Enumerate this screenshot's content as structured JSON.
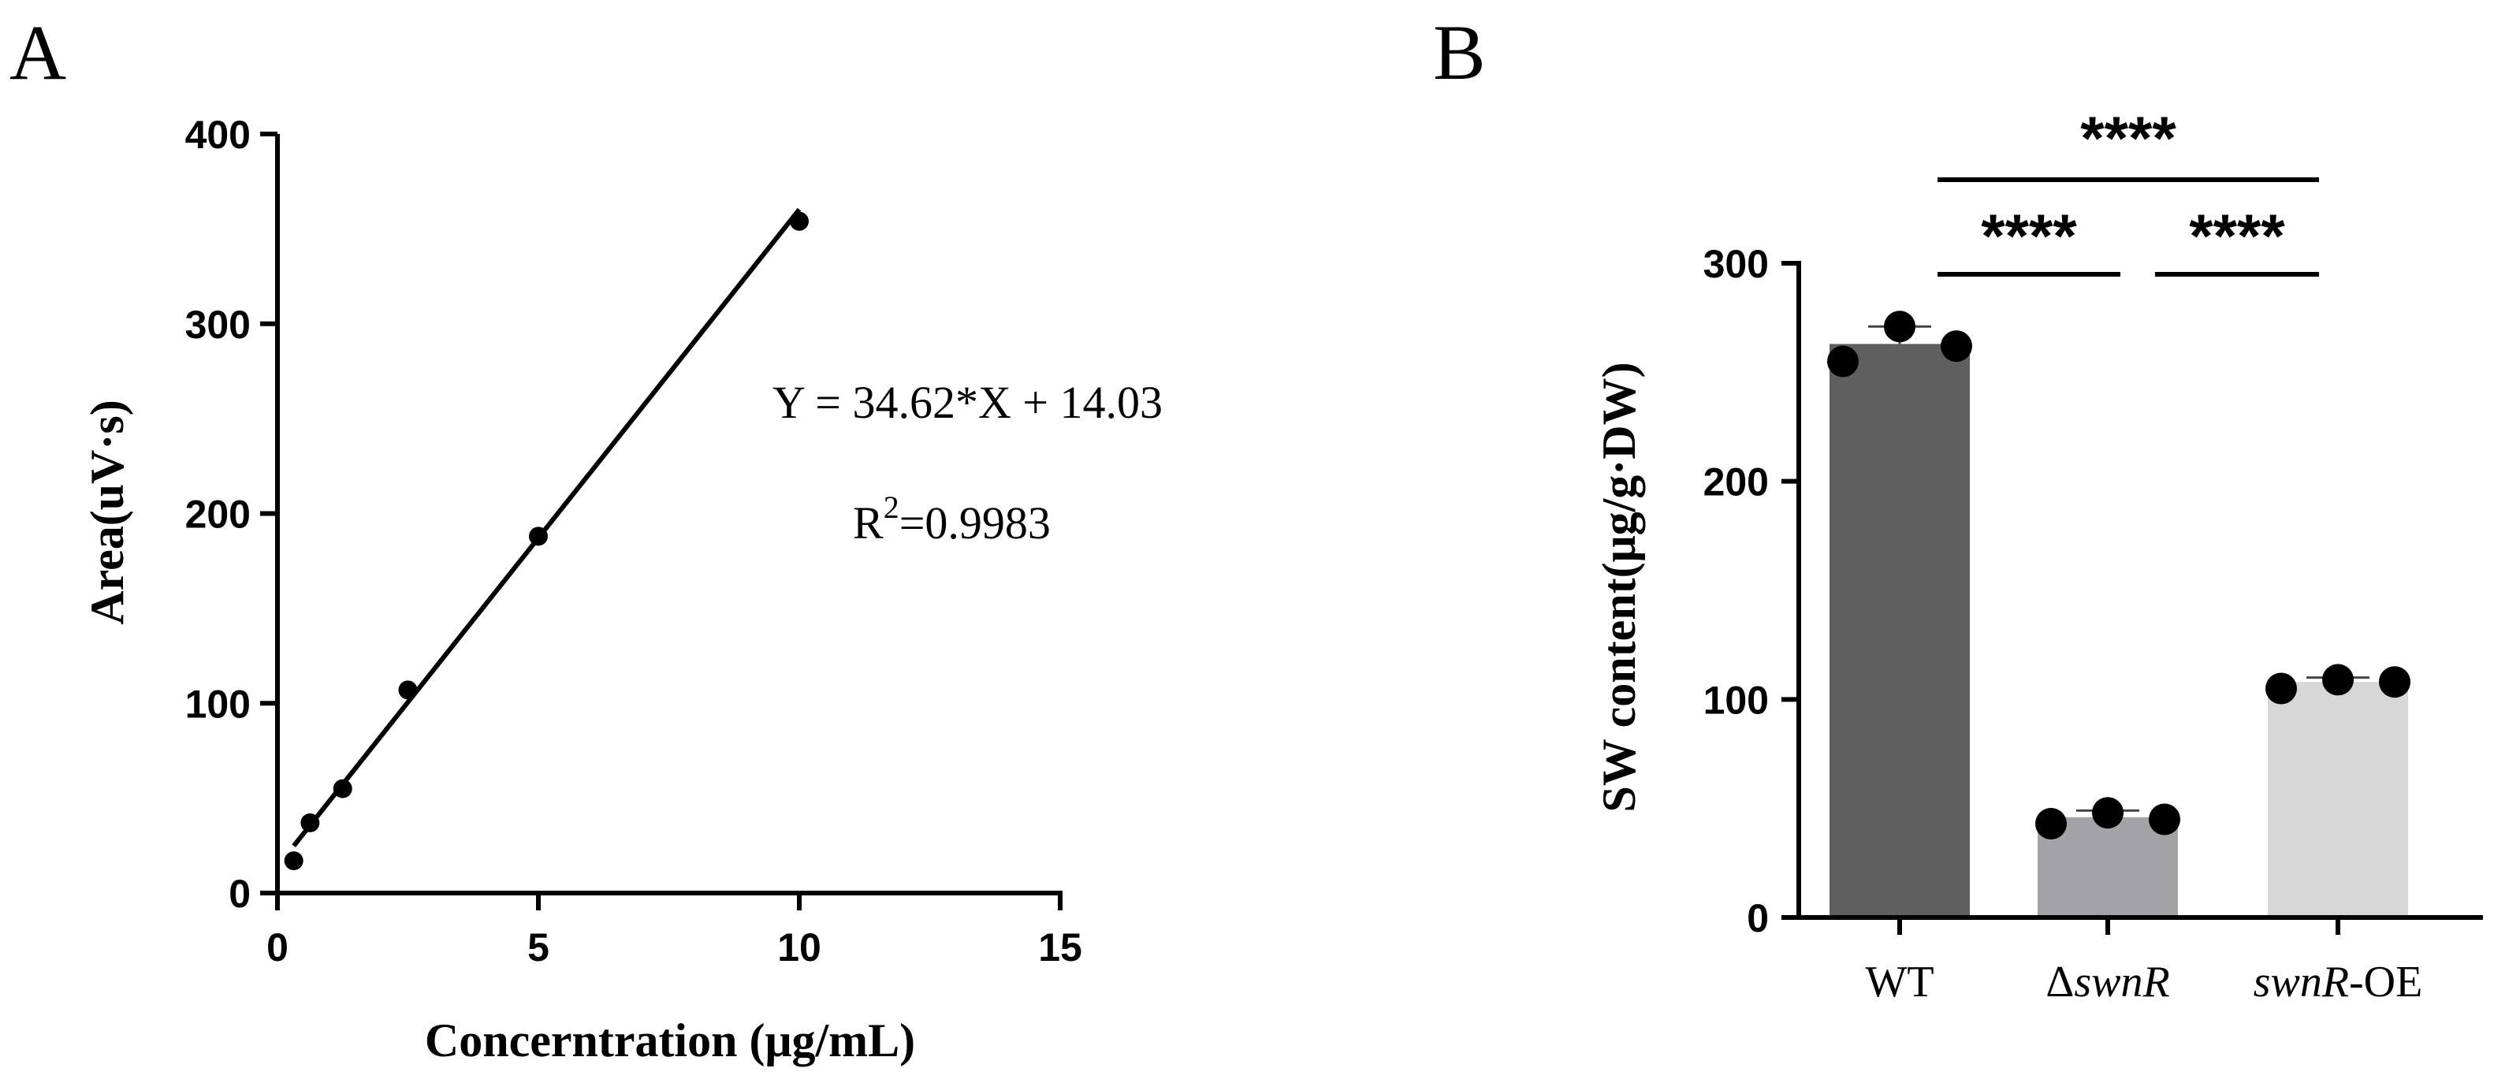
{
  "chart_data": [
    {
      "panel": "A",
      "type": "scatter",
      "xlabel": "Concerntration (μg/mL)",
      "ylabel": "Area(uV·s)",
      "xlim": [
        0,
        15
      ],
      "ylim": [
        0,
        400
      ],
      "xticks": [
        0,
        5,
        10,
        15
      ],
      "yticks": [
        0,
        100,
        200,
        300,
        400
      ],
      "points": [
        {
          "x": 0.3125,
          "y": 17
        },
        {
          "x": 0.625,
          "y": 37
        },
        {
          "x": 1.25,
          "y": 55
        },
        {
          "x": 2.5,
          "y": 107
        },
        {
          "x": 5,
          "y": 188
        },
        {
          "x": 10,
          "y": 354
        }
      ],
      "fit": {
        "slope": 34.62,
        "intercept": 14.03,
        "x_range": [
          0.3125,
          10
        ]
      },
      "annotations": [
        "Y = 34.62*X + 14.03",
        "=0.9983"
      ],
      "r_squared_prefix": "R",
      "r_squared_sup": "2"
    },
    {
      "panel": "B",
      "type": "bar",
      "ylabel": "SW content(μg/g·DW)",
      "ylim": [
        0,
        300
      ],
      "yticks": [
        0,
        100,
        200,
        300
      ],
      "categories": [
        {
          "prefix": "",
          "italic": "",
          "suffix": "WT"
        },
        {
          "prefix": "Δ",
          "italic": "swnR",
          "suffix": ""
        },
        {
          "prefix": "",
          "italic": "swnR",
          "suffix": "-OE"
        }
      ],
      "values": [
        263,
        46,
        108
      ],
      "errors": [
        8,
        3,
        2
      ],
      "points": [
        [
          255,
          271,
          262
        ],
        [
          43,
          48,
          45
        ],
        [
          105,
          109,
          108
        ]
      ],
      "bar_colors": [
        "#5f5f5f",
        "#a3a3a5",
        "#d7d7d7"
      ],
      "significance": [
        {
          "label": "****",
          "from": 0,
          "to": 2
        },
        {
          "label": "****",
          "from": 0,
          "to": 1
        },
        {
          "label": "****",
          "from": 1,
          "to": 2
        }
      ]
    }
  ]
}
